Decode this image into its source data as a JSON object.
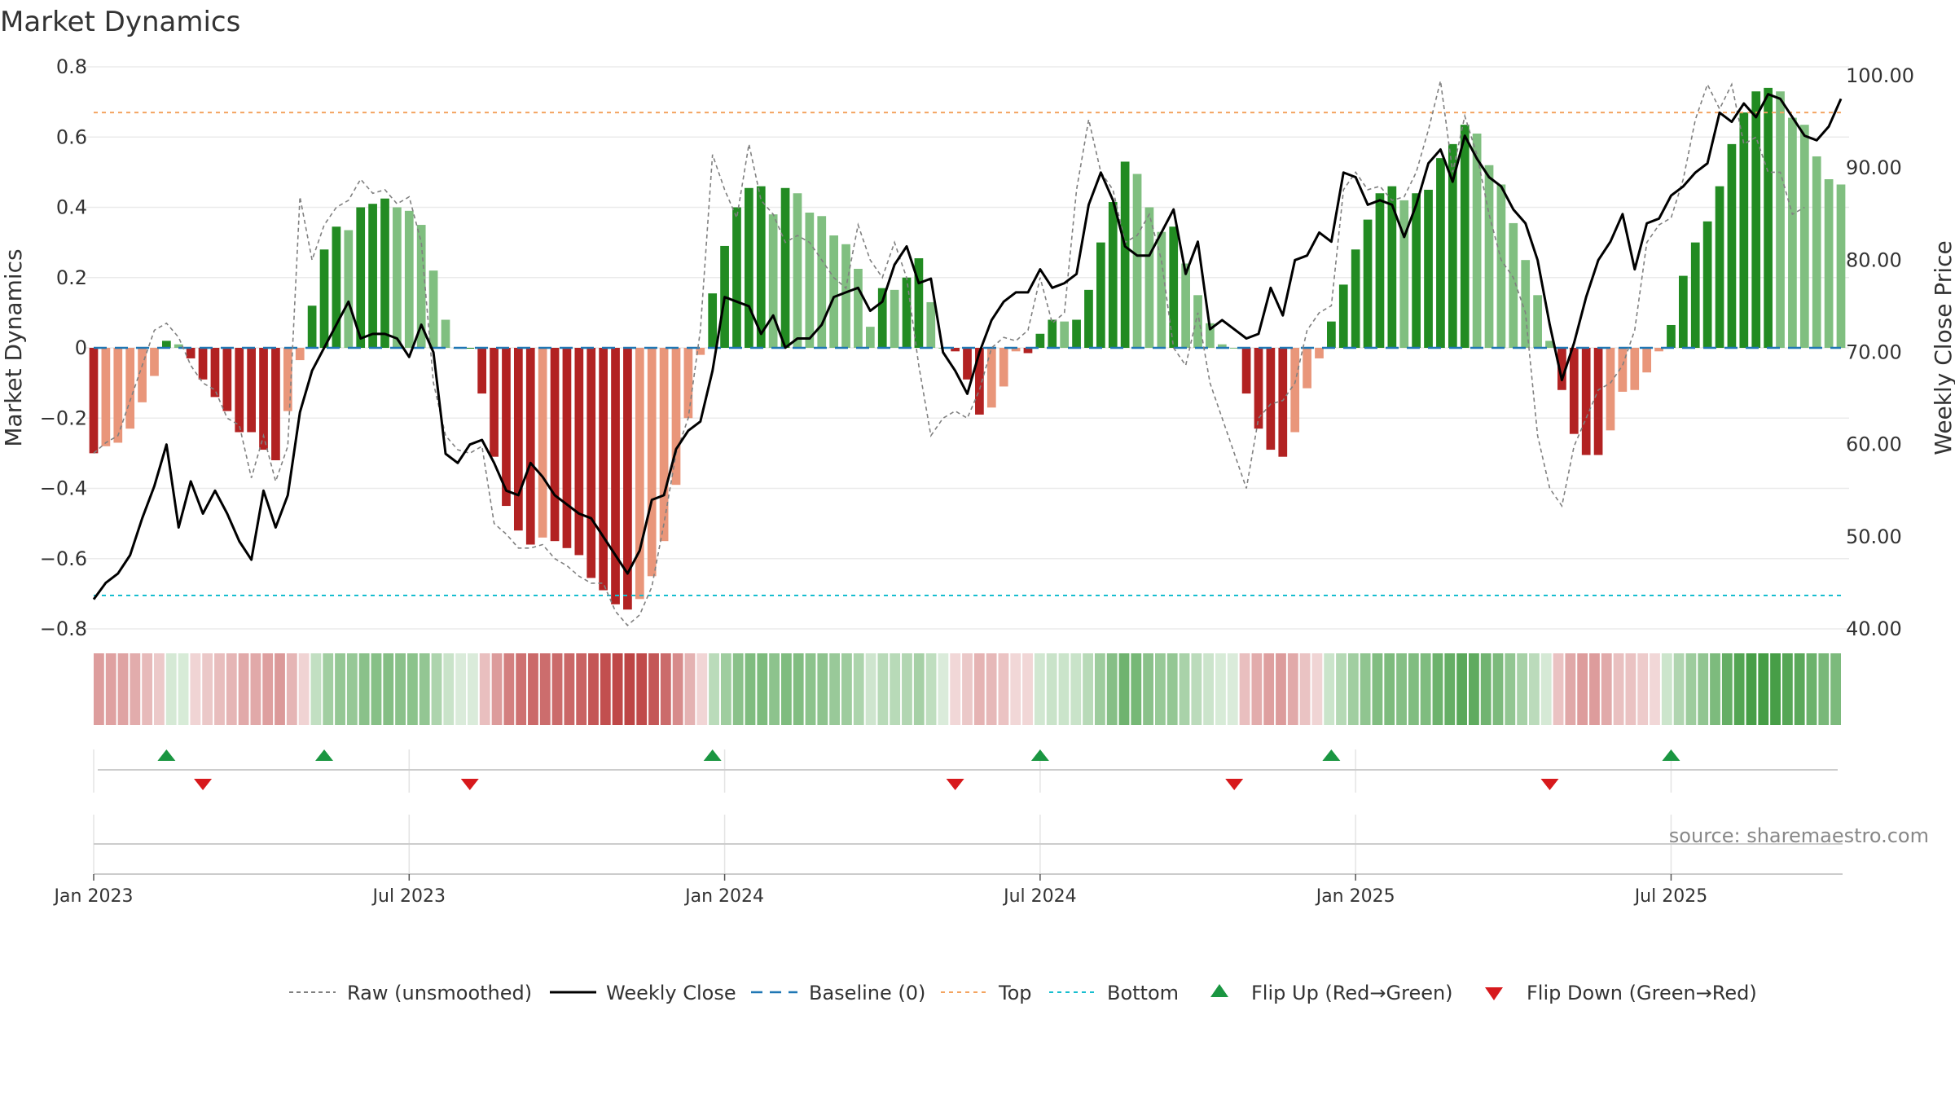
{
  "chart_data": {
    "type": "bar",
    "title": "Market Dynamics",
    "ylabel": "Market Dynamics",
    "y2label": "Weekly Close Price",
    "ylim": [
      -0.8,
      0.8
    ],
    "y2lim": [
      40,
      100
    ],
    "yticks": [
      "0.8",
      "0.6",
      "0.4",
      "0.2",
      "0",
      "−0.2",
      "−0.4",
      "−0.6",
      "−0.8"
    ],
    "y2ticks": [
      "100.00",
      "90.00",
      "80.00",
      "70.00",
      "60.00",
      "50.00",
      "40.00"
    ],
    "xtick_labels": [
      "Jan 2023",
      "Jul 2023",
      "Jan 2024",
      "Jul 2024",
      "Jan 2025",
      "Jul 2025"
    ],
    "xtick_weeks": [
      0,
      26,
      52,
      78,
      104,
      130
    ],
    "x_start": "2023-01-02",
    "x_freq": "weekly",
    "top_threshold": 0.67,
    "bottom_threshold": -0.705,
    "baseline": 0,
    "dynamics": [
      -0.3,
      -0.28,
      -0.27,
      -0.23,
      -0.155,
      -0.08,
      0.02,
      0.01,
      -0.03,
      -0.09,
      -0.14,
      -0.18,
      -0.24,
      -0.24,
      -0.29,
      -0.32,
      -0.18,
      -0.035,
      0.12,
      0.28,
      0.345,
      0.335,
      0.4,
      0.41,
      0.425,
      0.4,
      0.39,
      0.35,
      0.22,
      0.08,
      0,
      0,
      -0.13,
      -0.31,
      -0.45,
      -0.52,
      -0.56,
      -0.54,
      -0.55,
      -0.57,
      -0.59,
      -0.655,
      -0.69,
      -0.73,
      -0.745,
      -0.715,
      -0.65,
      -0.55,
      -0.39,
      -0.2,
      -0.02,
      0.155,
      0.29,
      0.4,
      0.455,
      0.46,
      0.38,
      0.455,
      0.44,
      0.385,
      0.375,
      0.32,
      0.295,
      0.225,
      0.06,
      0.17,
      0.165,
      0.2,
      0.255,
      0.13,
      0,
      -0.01,
      -0.09,
      -0.19,
      -0.17,
      -0.11,
      -0.01,
      -0.015,
      0.04,
      0.08,
      0.075,
      0.08,
      0.165,
      0.3,
      0.415,
      0.53,
      0.495,
      0.4,
      0.33,
      0.345,
      0.24,
      0.15,
      0.07,
      0.01,
      0,
      -0.13,
      -0.23,
      -0.29,
      -0.31,
      -0.24,
      -0.115,
      -0.03,
      0.075,
      0.18,
      0.28,
      0.365,
      0.44,
      0.46,
      0.42,
      0.44,
      0.45,
      0.54,
      0.58,
      0.635,
      0.61,
      0.52,
      0.465,
      0.355,
      0.25,
      0.15,
      0.02,
      -0.12,
      -0.245,
      -0.305,
      -0.305,
      -0.235,
      -0.125,
      -0.12,
      -0.07,
      -0.01,
      0.065,
      0.205,
      0.3,
      0.36,
      0.46,
      0.58,
      0.67,
      0.73,
      0.74,
      0.73,
      0.655,
      0.635,
      0.545,
      0.48,
      0.465
    ],
    "raw": [
      -0.3,
      -0.27,
      -0.25,
      -0.15,
      -0.05,
      0.05,
      0.07,
      0.03,
      -0.05,
      -0.1,
      -0.12,
      -0.2,
      -0.22,
      -0.37,
      -0.25,
      -0.38,
      -0.28,
      0.43,
      0.25,
      0.35,
      0.4,
      0.42,
      0.48,
      0.44,
      0.45,
      0.41,
      0.43,
      0.3,
      -0.1,
      -0.25,
      -0.29,
      -0.3,
      -0.28,
      -0.5,
      -0.53,
      -0.57,
      -0.57,
      -0.56,
      -0.6,
      -0.62,
      -0.65,
      -0.67,
      -0.67,
      -0.75,
      -0.79,
      -0.76,
      -0.68,
      -0.5,
      -0.3,
      -0.2,
      0.05,
      0.55,
      0.45,
      0.37,
      0.58,
      0.42,
      0.38,
      0.3,
      0.32,
      0.3,
      0.25,
      0.2,
      0.17,
      0.35,
      0.25,
      0.2,
      0.3,
      0.2,
      -0.05,
      -0.25,
      -0.2,
      -0.18,
      -0.2,
      -0.12,
      0,
      0.03,
      0.02,
      0.05,
      0.2,
      0.07,
      0.1,
      0.45,
      0.65,
      0.5,
      0.45,
      0.3,
      0.32,
      0.38,
      0.25,
      0,
      -0.05,
      0.1,
      -0.1,
      -0.2,
      -0.3,
      -0.4,
      -0.2,
      -0.16,
      -0.15,
      -0.1,
      0.05,
      0.1,
      0.12,
      0.45,
      0.5,
      0.45,
      0.46,
      0.42,
      0.43,
      0.5,
      0.62,
      0.76,
      0.5,
      0.66,
      0.55,
      0.38,
      0.25,
      0.2,
      0.1,
      -0.25,
      -0.4,
      -0.45,
      -0.28,
      -0.2,
      -0.12,
      -0.1,
      -0.05,
      0.05,
      0.3,
      0.35,
      0.37,
      0.48,
      0.65,
      0.75,
      0.68,
      0.75,
      0.58,
      0.6,
      0.5,
      0.5,
      0.38,
      0.4
    ],
    "close": [
      43.2,
      45,
      46,
      48,
      52,
      55.5,
      60,
      51,
      56,
      52.5,
      55,
      52.5,
      49.5,
      47.5,
      55,
      51,
      54.5,
      63.5,
      68,
      70.5,
      73,
      75.5,
      71.5,
      72,
      72,
      71.5,
      69.5,
      73,
      70,
      59,
      58,
      60,
      60.5,
      58,
      55,
      54.5,
      58,
      56.5,
      54.5,
      53.5,
      52.5,
      52,
      50,
      48,
      46,
      48.5,
      54,
      54.5,
      59.5,
      61.5,
      62.5,
      68,
      76,
      75.5,
      75,
      72,
      74,
      70.5,
      71.5,
      71.5,
      73,
      76,
      76.5,
      77,
      74.5,
      75.5,
      79.5,
      81.5,
      77.5,
      78,
      70,
      68,
      65.5,
      70,
      73.5,
      75.5,
      76.5,
      76.5,
      79,
      77,
      77.5,
      78.5,
      86,
      89.5,
      86.5,
      81.5,
      80.5,
      80.5,
      83,
      85.5,
      78.5,
      82,
      72.5,
      73.5,
      72.5,
      71.5,
      72,
      77,
      74,
      80,
      80.5,
      83,
      82,
      89.5,
      89,
      86,
      86.5,
      86,
      82.5,
      86,
      90.5,
      92,
      88.5,
      93.5,
      91,
      89,
      88,
      85.5,
      84,
      80,
      73,
      67,
      71,
      76,
      80,
      82,
      85,
      79,
      84,
      84.5,
      87,
      88,
      89.5,
      90.5,
      96,
      95,
      97,
      95.5,
      98,
      97.5,
      95.5,
      93.5,
      93,
      94.5,
      97.5
    ],
    "strip": [
      -0.3,
      -0.28,
      -0.27,
      -0.23,
      -0.155,
      -0.08,
      0.02,
      0.01,
      -0.03,
      -0.09,
      -0.14,
      -0.18,
      -0.24,
      -0.24,
      -0.29,
      -0.32,
      -0.18,
      -0.035,
      0.12,
      0.28,
      0.345,
      0.335,
      0.4,
      0.41,
      0.425,
      0.4,
      0.39,
      0.35,
      0.22,
      0.08,
      0,
      0,
      -0.13,
      -0.31,
      -0.45,
      -0.52,
      -0.56,
      -0.54,
      -0.55,
      -0.57,
      -0.59,
      -0.655,
      -0.69,
      -0.73,
      -0.745,
      -0.715,
      -0.65,
      -0.55,
      -0.39,
      -0.2,
      -0.02,
      0.155,
      0.29,
      0.4,
      0.455,
      0.46,
      0.38,
      0.455,
      0.44,
      0.385,
      0.375,
      0.32,
      0.295,
      0.225,
      0.06,
      0.17,
      0.165,
      0.2,
      0.255,
      0.13,
      0,
      -0.01,
      -0.09,
      -0.19,
      -0.17,
      -0.11,
      -0.01,
      -0.015,
      0.04,
      0.08,
      0.075,
      0.08,
      0.165,
      0.3,
      0.415,
      0.53,
      0.495,
      0.4,
      0.33,
      0.345,
      0.24,
      0.15,
      0.07,
      0.01,
      0,
      -0.13,
      -0.23,
      -0.29,
      -0.31,
      -0.24,
      -0.115,
      -0.03,
      0.075,
      0.18,
      0.28,
      0.365,
      0.44,
      0.46,
      0.42,
      0.44,
      0.45,
      0.54,
      0.58,
      0.635,
      0.61,
      0.52,
      0.465,
      0.355,
      0.25,
      0.15,
      0.02,
      -0.12,
      -0.245,
      -0.305,
      -0.305,
      -0.235,
      -0.125,
      -0.12,
      -0.07,
      -0.01,
      0.065,
      0.205,
      0.3,
      0.36,
      0.46,
      0.58,
      0.67,
      0.73,
      0.74,
      0.73,
      0.655,
      0.635,
      0.545,
      0.48,
      0.465
    ],
    "flip_up_weeks": [
      6,
      19,
      51,
      78,
      102,
      130
    ],
    "flip_down_weeks": [
      9,
      31,
      71,
      94,
      120
    ],
    "colors": {
      "strong_green": "#228b22",
      "light_green": "#80bf80",
      "strong_red": "#b22222",
      "light_red": "#e9967a",
      "raw_line": "#808080",
      "close_line": "#000000",
      "baseline": "#1f77b4",
      "top": "#f4a460",
      "bottom": "#17becf",
      "flip_up": "#1a9641",
      "flip_down": "#d7191c"
    },
    "legend": {
      "placement": "bottom-center",
      "raw": "Raw (unsmoothed)",
      "close": "Weekly Close",
      "baseline": "Baseline (0)",
      "top": "Top",
      "bottom": "Bottom",
      "flip_up": "Flip Up (Red→Green)",
      "flip_down": "Flip Down (Green→Red)"
    },
    "source": "source: sharemaestro.com",
    "grid": true
  }
}
